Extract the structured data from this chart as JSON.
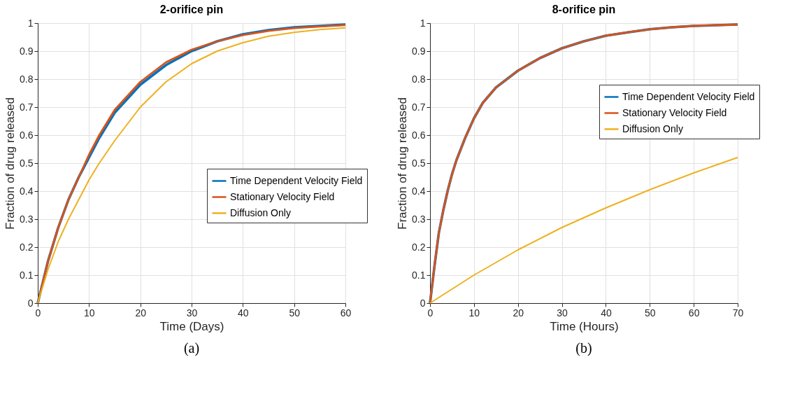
{
  "chart_data": [
    {
      "type": "line",
      "title": "2-orifice pin",
      "xlabel": "Time (Days)",
      "ylabel": "Fraction of drug released",
      "xlim": [
        0,
        60
      ],
      "xticks": [
        0,
        10,
        20,
        30,
        40,
        50,
        60
      ],
      "ylim": [
        0,
        1
      ],
      "yticks": [
        0,
        0.1,
        0.2,
        0.3,
        0.4,
        0.5,
        0.6,
        0.7,
        0.8,
        0.9,
        1
      ],
      "grid": true,
      "legend": "right",
      "annotations": [
        "(a)"
      ],
      "series": [
        {
          "name": "Time Dependent Velocity Field",
          "color": "#0072bd",
          "x": [
            0,
            2,
            4,
            6,
            8,
            10,
            12,
            15,
            20,
            25,
            30,
            35,
            40,
            45,
            50,
            55,
            60
          ],
          "values": [
            0,
            0.15,
            0.27,
            0.37,
            0.45,
            0.52,
            0.59,
            0.68,
            0.78,
            0.85,
            0.9,
            0.935,
            0.96,
            0.975,
            0.985,
            0.99,
            0.995
          ]
        },
        {
          "name": "Stationary Velocity Field",
          "color": "#d95319",
          "x": [
            0,
            2,
            4,
            6,
            8,
            10,
            12,
            15,
            20,
            25,
            30,
            35,
            40,
            45,
            50,
            55,
            60
          ],
          "values": [
            0,
            0.15,
            0.27,
            0.37,
            0.45,
            0.53,
            0.6,
            0.69,
            0.79,
            0.86,
            0.905,
            0.935,
            0.957,
            0.972,
            0.982,
            0.988,
            0.993
          ]
        },
        {
          "name": "Diffusion Only",
          "color": "#edb120",
          "x": [
            0,
            2,
            4,
            6,
            8,
            10,
            12,
            15,
            20,
            25,
            30,
            35,
            40,
            45,
            50,
            55,
            60
          ],
          "values": [
            0,
            0.12,
            0.22,
            0.3,
            0.37,
            0.44,
            0.5,
            0.58,
            0.7,
            0.79,
            0.855,
            0.9,
            0.93,
            0.953,
            0.967,
            0.977,
            0.983
          ]
        }
      ]
    },
    {
      "type": "line",
      "title": "8-orifice pin",
      "xlabel": "Time (Hours)",
      "ylabel": "Fraction of drug released",
      "xlim": [
        0,
        70
      ],
      "xticks": [
        0,
        10,
        20,
        30,
        40,
        50,
        60,
        70
      ],
      "ylim": [
        0,
        1
      ],
      "yticks": [
        0,
        0.1,
        0.2,
        0.3,
        0.4,
        0.5,
        0.6,
        0.7,
        0.8,
        0.9,
        1
      ],
      "grid": true,
      "legend": "top right",
      "annotations": [
        "(b)"
      ],
      "series": [
        {
          "name": "Time Dependent Velocity Field",
          "color": "#0072bd",
          "x": [
            0,
            1,
            2,
            3,
            4,
            5,
            6,
            8,
            10,
            12,
            15,
            20,
            25,
            30,
            35,
            40,
            45,
            50,
            55,
            60,
            70
          ],
          "values": [
            0,
            0.13,
            0.25,
            0.33,
            0.4,
            0.46,
            0.51,
            0.59,
            0.66,
            0.715,
            0.77,
            0.83,
            0.875,
            0.91,
            0.935,
            0.955,
            0.967,
            0.978,
            0.985,
            0.99,
            0.995
          ]
        },
        {
          "name": "Stationary Velocity Field",
          "color": "#d95319",
          "x": [
            0,
            1,
            2,
            3,
            4,
            5,
            6,
            8,
            10,
            12,
            15,
            20,
            25,
            30,
            35,
            40,
            45,
            50,
            55,
            60,
            70
          ],
          "values": [
            0,
            0.13,
            0.25,
            0.33,
            0.4,
            0.46,
            0.51,
            0.59,
            0.66,
            0.715,
            0.77,
            0.83,
            0.875,
            0.91,
            0.935,
            0.955,
            0.967,
            0.978,
            0.985,
            0.99,
            0.995
          ]
        },
        {
          "name": "Diffusion Only",
          "color": "#edb120",
          "x": [
            0,
            5,
            10,
            15,
            20,
            30,
            40,
            50,
            60,
            70
          ],
          "values": [
            0,
            0.05,
            0.1,
            0.145,
            0.19,
            0.27,
            0.34,
            0.405,
            0.465,
            0.52
          ]
        }
      ]
    }
  ]
}
